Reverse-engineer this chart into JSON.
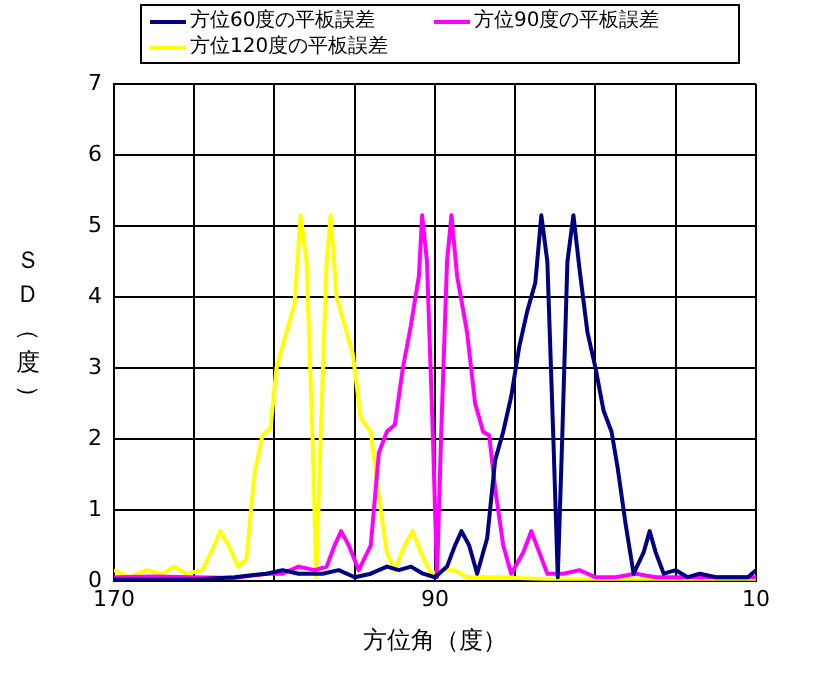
{
  "chart_data": {
    "type": "line",
    "xlabel": "方位角（度）",
    "ylabel": "ＳＤ（度）",
    "xlim": [
      170,
      10
    ],
    "ylim": [
      0,
      7
    ],
    "xticks": [
      170,
      {
        "value": 150,
        "label": null
      },
      {
        "value": 130,
        "label": null
      },
      {
        "value": 110,
        "label": null
      },
      90,
      {
        "value": 70,
        "label": null
      },
      {
        "value": 50,
        "label": null
      },
      {
        "value": 30,
        "label": null
      },
      10
    ],
    "yticks": [
      0,
      1,
      2,
      3,
      4,
      5,
      6,
      7
    ],
    "grid": true,
    "legend": "top",
    "marker": "none",
    "line_style": "solid",
    "series": [
      {
        "name": "方位60度の平板誤差",
        "color": "#000080",
        "x": [
          170,
          150,
          140,
          132,
          128,
          124,
          118,
          114,
          110,
          106,
          102,
          99,
          96,
          93,
          90,
          87,
          85,
          83.4,
          81.5,
          79.5,
          77,
          75,
          73,
          71,
          69,
          67,
          65,
          63.5,
          62,
          60.5,
          59.4,
          58.3,
          57,
          55.5,
          54,
          52,
          50,
          48,
          46,
          44.5,
          42.5,
          40.5,
          38,
          36.5,
          35,
          33,
          30,
          27,
          24,
          20,
          15,
          12,
          10
        ],
        "values": [
          0.02,
          0.02,
          0.05,
          0.1,
          0.15,
          0.1,
          0.1,
          0.15,
          0.05,
          0.1,
          0.2,
          0.15,
          0.2,
          0.1,
          0.05,
          0.2,
          0.5,
          0.7,
          0.5,
          0.1,
          0.6,
          1.7,
          2.1,
          2.6,
          3.3,
          3.8,
          4.2,
          5.15,
          4.5,
          2,
          0.05,
          2,
          4.5,
          5.15,
          4.4,
          3.5,
          3,
          2.4,
          2.1,
          1.6,
          0.8,
          0.1,
          0.4,
          0.7,
          0.4,
          0.1,
          0.15,
          0.05,
          0.1,
          0.05,
          0.05,
          0.05,
          0.15
        ]
      },
      {
        "name": "方位90度の平板誤差",
        "color": "#ff00ff",
        "x": [
          170,
          160,
          150,
          140,
          132,
          128,
          124,
          120,
          117,
          115,
          113.4,
          111.5,
          109,
          106,
          104,
          102,
          100,
          98,
          96,
          94,
          93.2,
          92,
          90.5,
          89.5,
          88.5,
          87,
          85.9,
          84.5,
          82,
          80,
          78,
          76.5,
          75,
          73,
          71,
          68,
          66,
          64,
          62,
          58,
          54,
          50,
          45,
          40,
          35,
          10
        ],
        "values": [
          0.05,
          0.06,
          0.05,
          0.04,
          0.1,
          0.1,
          0.2,
          0.15,
          0.2,
          0.5,
          0.7,
          0.5,
          0.15,
          0.5,
          1.8,
          2.1,
          2.2,
          3,
          3.6,
          4.3,
          5.15,
          4.5,
          2,
          0.05,
          2,
          4.5,
          5.15,
          4.3,
          3.5,
          2.5,
          2.1,
          2.05,
          1.3,
          0.5,
          0.1,
          0.4,
          0.7,
          0.4,
          0.1,
          0.1,
          0.15,
          0.05,
          0.05,
          0.1,
          0.05,
          0.05
        ]
      },
      {
        "name": "方位120度の平板誤差",
        "color": "#ffff00",
        "x": [
          170,
          166,
          162,
          158,
          155,
          152,
          148,
          145,
          143.5,
          141.5,
          139,
          137,
          135,
          133,
          131,
          129.5,
          127,
          125,
          123.5,
          122,
          120.5,
          119.6,
          118.5,
          117,
          116,
          114.5,
          112.5,
          110.5,
          108.5,
          106,
          104,
          102,
          100,
          97.5,
          95.6,
          93.5,
          91,
          88,
          85,
          82,
          75,
          60,
          40,
          10
        ],
        "values": [
          0.15,
          0.05,
          0.15,
          0.1,
          0.2,
          0.1,
          0.15,
          0.5,
          0.7,
          0.5,
          0.2,
          0.3,
          1.5,
          2.05,
          2.15,
          3,
          3.5,
          3.9,
          5.15,
          4.5,
          2,
          0.05,
          2,
          4.5,
          5.15,
          4,
          3.6,
          3.2,
          2.3,
          2.1,
          1.2,
          0.4,
          0.15,
          0.5,
          0.7,
          0.4,
          0.1,
          0.15,
          0.15,
          0.05,
          0.05,
          0.02,
          0.02,
          0.02
        ]
      }
    ]
  }
}
